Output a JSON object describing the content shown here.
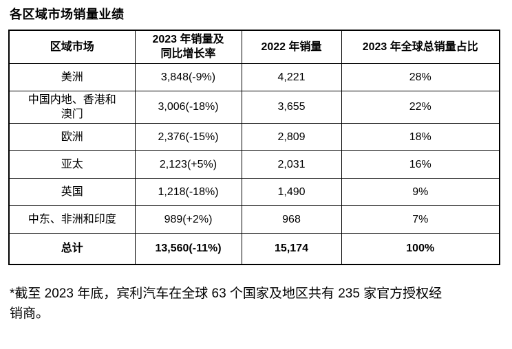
{
  "title": "各区域市场销量业绩",
  "table": {
    "columns": [
      "区域市场",
      "2023 年销量及\n同比增长率",
      "2022 年销量",
      "2023 年全球总销量占比"
    ],
    "rows": [
      {
        "region": "美洲",
        "sales_2023": "3,848(-9%)",
        "sales_2022": "4,221",
        "share_2023": "28%",
        "is_total": false
      },
      {
        "region": "中国内地、香港和\n澳门",
        "sales_2023": "3,006(-18%)",
        "sales_2022": "3,655",
        "share_2023": "22%",
        "is_total": false
      },
      {
        "region": "欧洲",
        "sales_2023": "2,376(-15%)",
        "sales_2022": "2,809",
        "share_2023": "18%",
        "is_total": false
      },
      {
        "region": "亚太",
        "sales_2023": "2,123(+5%)",
        "sales_2022": "2,031",
        "share_2023": "16%",
        "is_total": false
      },
      {
        "region": "英国",
        "sales_2023": "1,218(-18%)",
        "sales_2022": "1,490",
        "share_2023": "9%",
        "is_total": false
      },
      {
        "region": "中东、非洲和印度",
        "sales_2023": "989(+2%)",
        "sales_2022": "968",
        "share_2023": "7%",
        "is_total": false
      },
      {
        "region": "总计",
        "sales_2023": "13,560(-11%)",
        "sales_2022": "15,174",
        "share_2023": "100%",
        "is_total": true
      }
    ]
  },
  "footnote": "*截至 2023 年底，宾利汽车在全球 63 个国家及地区共有 235 家官方授权经\n销商。"
}
